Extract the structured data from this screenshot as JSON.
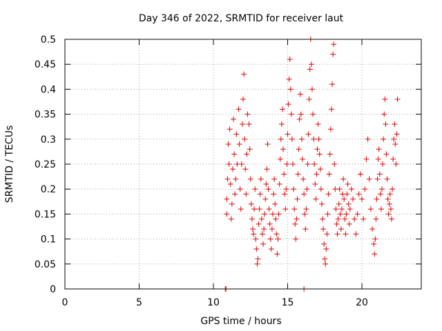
{
  "chart_data": {
    "type": "scatter",
    "title": "Day 346 of 2022, SRMTID for receiver laut",
    "xlabel": "GPS time / hours",
    "ylabel": "SRMTID / TECUs",
    "xlim": [
      0,
      24
    ],
    "ylim": [
      0,
      0.5
    ],
    "xticks": [
      0,
      5,
      10,
      15,
      20
    ],
    "yticks": [
      0,
      0.05,
      0.1,
      0.15,
      0.2,
      0.25,
      0.3,
      0.35,
      0.4,
      0.45,
      0.5
    ],
    "xtick_labels": [
      "0",
      "5",
      "10",
      "15",
      "20"
    ],
    "ytick_labels": [
      "0",
      "0.05",
      "0.1",
      "0.15",
      "0.2",
      "0.25",
      "0.3",
      "0.35",
      "0.4",
      "0.45",
      "0.5"
    ],
    "grid": true,
    "marker": "+",
    "marker_color": "#e00000",
    "series": [
      {
        "points": [
          [
            10.8,
            0.0
          ],
          [
            10.85,
            0.0
          ],
          [
            16.1,
            0.0
          ],
          [
            10.9,
            0.18
          ],
          [
            10.9,
            0.15
          ],
          [
            10.95,
            0.22
          ],
          [
            11.0,
            0.29
          ],
          [
            11.05,
            0.25
          ],
          [
            11.1,
            0.32
          ],
          [
            11.15,
            0.21
          ],
          [
            11.2,
            0.14
          ],
          [
            11.25,
            0.17
          ],
          [
            11.3,
            0.24
          ],
          [
            11.35,
            0.34
          ],
          [
            11.4,
            0.27
          ],
          [
            11.45,
            0.19
          ],
          [
            11.5,
            0.22
          ],
          [
            11.55,
            0.31
          ],
          [
            11.6,
            0.25
          ],
          [
            11.7,
            0.36
          ],
          [
            11.75,
            0.29
          ],
          [
            11.8,
            0.2
          ],
          [
            11.85,
            0.16
          ],
          [
            11.9,
            0.25
          ],
          [
            11.95,
            0.33
          ],
          [
            12.0,
            0.38
          ],
          [
            12.05,
            0.43
          ],
          [
            12.1,
            0.3
          ],
          [
            12.15,
            0.24
          ],
          [
            12.2,
            0.19
          ],
          [
            12.25,
            0.27
          ],
          [
            12.3,
            0.35
          ],
          [
            12.4,
            0.33
          ],
          [
            12.45,
            0.28
          ],
          [
            12.5,
            0.22
          ],
          [
            12.55,
            0.17
          ],
          [
            12.6,
            0.14
          ],
          [
            12.65,
            0.12
          ],
          [
            12.7,
            0.11
          ],
          [
            12.75,
            0.16
          ],
          [
            12.8,
            0.2
          ],
          [
            12.85,
            0.1
          ],
          [
            12.9,
            0.08
          ],
          [
            12.95,
            0.05
          ],
          [
            13.0,
            0.06
          ],
          [
            13.05,
            0.13
          ],
          [
            13.1,
            0.16
          ],
          [
            13.15,
            0.19
          ],
          [
            13.2,
            0.22
          ],
          [
            13.25,
            0.14
          ],
          [
            13.3,
            0.11
          ],
          [
            13.35,
            0.09
          ],
          [
            13.4,
            0.12
          ],
          [
            13.45,
            0.15
          ],
          [
            13.5,
            0.18
          ],
          [
            13.55,
            0.21
          ],
          [
            13.6,
            0.24
          ],
          [
            13.65,
            0.29
          ],
          [
            13.7,
            0.2
          ],
          [
            13.75,
            0.16
          ],
          [
            13.8,
            0.13
          ],
          [
            13.85,
            0.1
          ],
          [
            13.9,
            0.08
          ],
          [
            13.95,
            0.12
          ],
          [
            14.0,
            0.15
          ],
          [
            14.05,
            0.19
          ],
          [
            14.1,
            0.22
          ],
          [
            14.15,
            0.17
          ],
          [
            14.2,
            0.14
          ],
          [
            14.25,
            0.11
          ],
          [
            14.3,
            0.07
          ],
          [
            14.35,
            0.1
          ],
          [
            14.4,
            0.15
          ],
          [
            14.45,
            0.21
          ],
          [
            14.5,
            0.26
          ],
          [
            14.55,
            0.3
          ],
          [
            14.6,
            0.33
          ],
          [
            14.65,
            0.36
          ],
          [
            14.7,
            0.28
          ],
          [
            14.75,
            0.23
          ],
          [
            14.8,
            0.19
          ],
          [
            14.85,
            0.16
          ],
          [
            14.9,
            0.2
          ],
          [
            14.95,
            0.25
          ],
          [
            15.0,
            0.31
          ],
          [
            15.05,
            0.37
          ],
          [
            15.1,
            0.42
          ],
          [
            15.15,
            0.46
          ],
          [
            15.2,
            0.4
          ],
          [
            15.25,
            0.35
          ],
          [
            15.3,
            0.3
          ],
          [
            15.35,
            0.25
          ],
          [
            15.4,
            0.2
          ],
          [
            15.45,
            0.16
          ],
          [
            15.5,
            0.13
          ],
          [
            15.55,
            0.1
          ],
          [
            15.6,
            0.14
          ],
          [
            15.65,
            0.18
          ],
          [
            15.7,
            0.23
          ],
          [
            15.75,
            0.28
          ],
          [
            15.8,
            0.34
          ],
          [
            15.85,
            0.39
          ],
          [
            15.9,
            0.35
          ],
          [
            15.95,
            0.3
          ],
          [
            16.0,
            0.26
          ],
          [
            16.05,
            0.22
          ],
          [
            16.1,
            0.19
          ],
          [
            16.15,
            0.15
          ],
          [
            16.2,
            0.12
          ],
          [
            16.25,
            0.16
          ],
          [
            16.3,
            0.2
          ],
          [
            16.35,
            0.25
          ],
          [
            16.4,
            0.31
          ],
          [
            16.45,
            0.38
          ],
          [
            16.5,
            0.44
          ],
          [
            16.55,
            0.5
          ],
          [
            16.6,
            0.45
          ],
          [
            16.65,
            0.4
          ],
          [
            16.7,
            0.35
          ],
          [
            16.75,
            0.3
          ],
          [
            16.8,
            0.25
          ],
          [
            16.85,
            0.21
          ],
          [
            16.9,
            0.18
          ],
          [
            16.95,
            0.23
          ],
          [
            17.0,
            0.28
          ],
          [
            17.05,
            0.33
          ],
          [
            17.1,
            0.3
          ],
          [
            17.15,
            0.27
          ],
          [
            17.2,
            0.24
          ],
          [
            17.25,
            0.2
          ],
          [
            17.3,
            0.17
          ],
          [
            17.35,
            0.14
          ],
          [
            17.4,
            0.12
          ],
          [
            17.45,
            0.09
          ],
          [
            17.5,
            0.06
          ],
          [
            17.55,
            0.05
          ],
          [
            17.6,
            0.08
          ],
          [
            17.65,
            0.11
          ],
          [
            17.7,
            0.15
          ],
          [
            17.75,
            0.19
          ],
          [
            17.8,
            0.23
          ],
          [
            17.85,
            0.27
          ],
          [
            17.9,
            0.32
          ],
          [
            17.95,
            0.36
          ],
          [
            18.0,
            0.41
          ],
          [
            18.05,
            0.47
          ],
          [
            18.1,
            0.49
          ],
          [
            18.15,
            0.25
          ],
          [
            18.2,
            0.2
          ],
          [
            18.25,
            0.16
          ],
          [
            18.3,
            0.13
          ],
          [
            18.35,
            0.11
          ],
          [
            18.4,
            0.14
          ],
          [
            18.45,
            0.17
          ],
          [
            18.5,
            0.2
          ],
          [
            18.55,
            0.15
          ],
          [
            18.6,
            0.12
          ],
          [
            18.65,
            0.16
          ],
          [
            18.7,
            0.19
          ],
          [
            18.75,
            0.22
          ],
          [
            18.8,
            0.18
          ],
          [
            18.85,
            0.14
          ],
          [
            18.9,
            0.11
          ],
          [
            18.95,
            0.15
          ],
          [
            19.0,
            0.19
          ],
          [
            19.05,
            0.21
          ],
          [
            19.1,
            0.17
          ],
          [
            19.15,
            0.13
          ],
          [
            19.2,
            0.16
          ],
          [
            19.3,
            0.2
          ],
          [
            19.4,
            0.18
          ],
          [
            19.5,
            0.14
          ],
          [
            19.6,
            0.11
          ],
          [
            19.7,
            0.15
          ],
          [
            19.8,
            0.19
          ],
          [
            19.9,
            0.23
          ],
          [
            20.0,
            0.18
          ],
          [
            20.1,
            0.14
          ],
          [
            20.2,
            0.2
          ],
          [
            20.3,
            0.26
          ],
          [
            20.4,
            0.3
          ],
          [
            20.5,
            0.22
          ],
          [
            20.6,
            0.16
          ],
          [
            20.7,
            0.12
          ],
          [
            20.8,
            0.09
          ],
          [
            20.85,
            0.07
          ],
          [
            20.9,
            0.1
          ],
          [
            20.95,
            0.14
          ],
          [
            21.0,
            0.18
          ],
          [
            21.05,
            0.22
          ],
          [
            21.1,
            0.26
          ],
          [
            21.15,
            0.28
          ],
          [
            21.2,
            0.23
          ],
          [
            21.25,
            0.19
          ],
          [
            21.3,
            0.16
          ],
          [
            21.35,
            0.2
          ],
          [
            21.4,
            0.25
          ],
          [
            21.45,
            0.3
          ],
          [
            21.5,
            0.35
          ],
          [
            21.55,
            0.38
          ],
          [
            21.6,
            0.33
          ],
          [
            21.65,
            0.27
          ],
          [
            21.7,
            0.22
          ],
          [
            21.75,
            0.18
          ],
          [
            21.8,
            0.15
          ],
          [
            21.85,
            0.17
          ],
          [
            21.9,
            0.19
          ],
          [
            21.95,
            0.16
          ],
          [
            22.0,
            0.14
          ],
          [
            22.05,
            0.2
          ],
          [
            22.1,
            0.26
          ],
          [
            22.15,
            0.3
          ],
          [
            22.2,
            0.33
          ],
          [
            22.25,
            0.29
          ],
          [
            22.3,
            0.25
          ],
          [
            22.35,
            0.31
          ],
          [
            22.4,
            0.38
          ]
        ]
      }
    ]
  }
}
